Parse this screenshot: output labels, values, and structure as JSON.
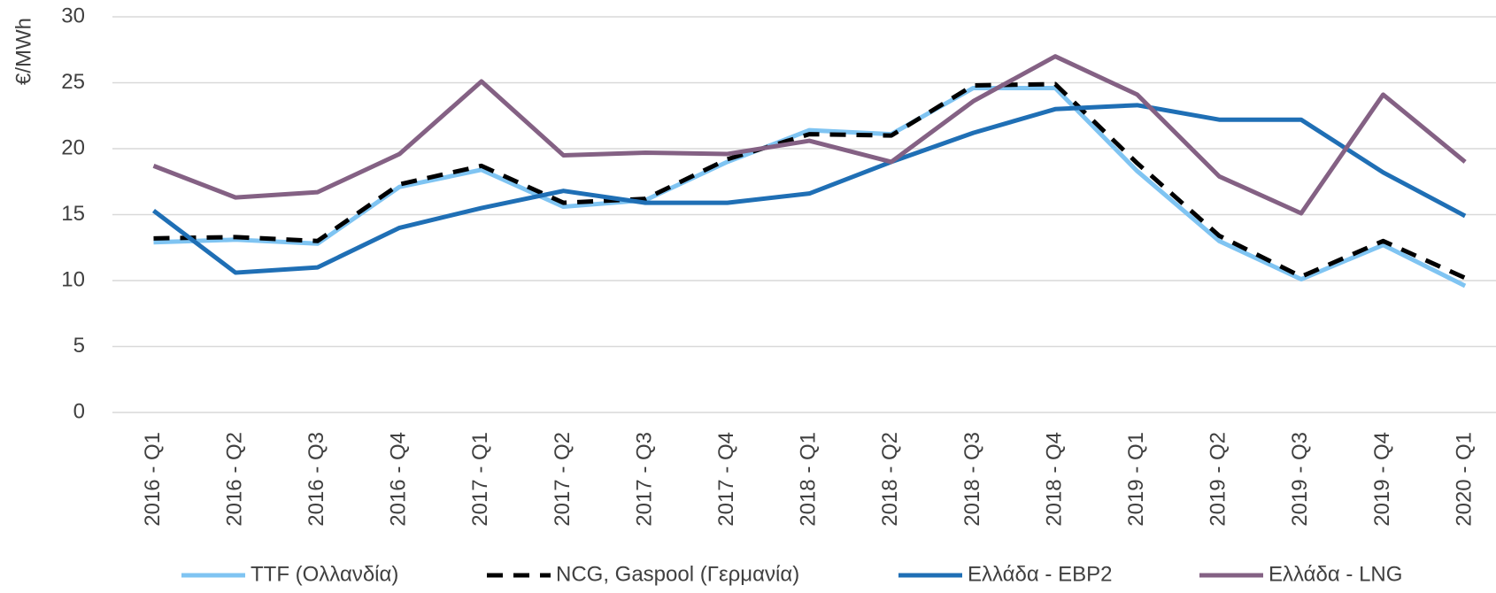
{
  "chart_data": {
    "type": "line",
    "y_label": "€/MWh",
    "categories": [
      "2016 - Q1",
      "2016 - Q2",
      "2016 - Q3",
      "2016 - Q4",
      "2017 - Q1",
      "2017 - Q2",
      "2017 - Q3",
      "2017 - Q4",
      "2018 - Q1",
      "2018 - Q2",
      "2018 - Q3",
      "2018 - Q4",
      "2019 - Q1",
      "2019 - Q2",
      "2019 - Q3",
      "2019 - Q4",
      "2020 - Q1"
    ],
    "series": [
      {
        "name": "TTF (Ολλανδία)",
        "color": "#7fc4f2",
        "dash": false,
        "values": [
          12.9,
          13.1,
          12.8,
          17.1,
          18.4,
          15.6,
          16.1,
          19.0,
          21.4,
          21.1,
          24.6,
          24.6,
          18.3,
          13.0,
          10.1,
          12.7,
          9.6
        ]
      },
      {
        "name": "NCG, Gaspool (Γερμανία)",
        "color": "#000000",
        "dash": true,
        "values": [
          13.2,
          13.3,
          13.0,
          17.3,
          18.7,
          15.9,
          16.2,
          19.2,
          21.1,
          21.0,
          24.8,
          24.9,
          18.9,
          13.4,
          10.3,
          13.0,
          10.2
        ]
      },
      {
        "name": "Ελλάδα - EBP2",
        "color": "#1f6fb5",
        "dash": false,
        "values": [
          15.3,
          10.6,
          11.0,
          14.0,
          15.5,
          16.8,
          15.9,
          15.9,
          16.6,
          19.0,
          21.2,
          23.0,
          23.3,
          22.2,
          22.2,
          18.2,
          14.9
        ]
      },
      {
        "name": "Ελλάδα - LNG",
        "color": "#846184",
        "dash": false,
        "values": [
          18.7,
          16.3,
          16.7,
          19.6,
          25.1,
          19.5,
          19.7,
          19.6,
          20.6,
          19.0,
          23.6,
          27.0,
          24.1,
          17.9,
          15.1,
          24.1,
          19.0
        ]
      }
    ],
    "ylim": [
      0,
      30
    ],
    "yticks": [
      0,
      5,
      10,
      15,
      20,
      25,
      30
    ],
    "grid": true,
    "legend": "bottom"
  }
}
